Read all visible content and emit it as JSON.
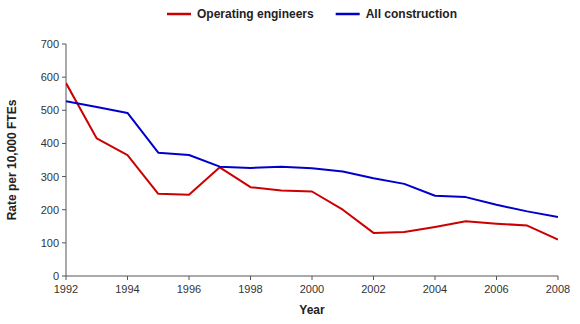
{
  "chart_data": {
    "type": "line",
    "xlabel": "Year",
    "ylabel": "Rate per 10,000 FTEs",
    "x": [
      1992,
      1993,
      1994,
      1995,
      1996,
      1997,
      1998,
      1999,
      2000,
      2001,
      2002,
      2003,
      2004,
      2005,
      2006,
      2007,
      2008
    ],
    "series": [
      {
        "name": "Operating engineers",
        "color": "#cc0000",
        "values": [
          582,
          415,
          365,
          248,
          245,
          328,
          268,
          258,
          255,
          200,
          130,
          133,
          148,
          165,
          158,
          152,
          110
        ]
      },
      {
        "name": "All construction",
        "color": "#0000cc",
        "values": [
          527,
          510,
          492,
          372,
          365,
          330,
          326,
          330,
          325,
          315,
          295,
          278,
          242,
          238,
          215,
          195,
          178
        ]
      }
    ],
    "xlim": [
      1992,
      2008
    ],
    "xticks": [
      1992,
      1994,
      1996,
      1998,
      2000,
      2002,
      2004,
      2006,
      2008
    ],
    "ylim": [
      0,
      700
    ],
    "yticks": [
      0,
      100,
      200,
      300,
      400,
      500,
      600,
      700
    ],
    "grid": false,
    "legend": "top"
  }
}
